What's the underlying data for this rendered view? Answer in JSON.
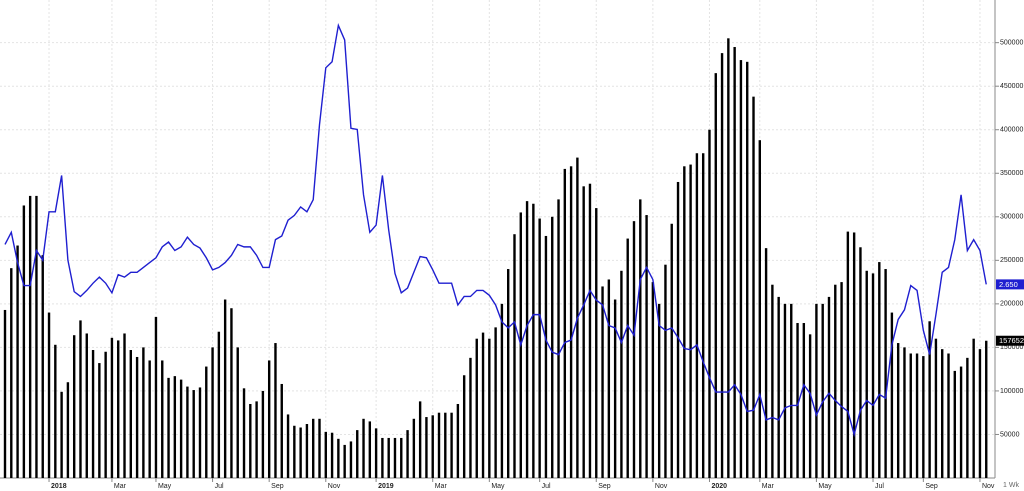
{
  "chart_data": {
    "type": "bar-line",
    "interval_label": "1 Wk",
    "categories": [
      null,
      null,
      null,
      null,
      null,
      null,
      null,
      "2018",
      null,
      null,
      null,
      null,
      null,
      null,
      null,
      null,
      null,
      "Mar",
      null,
      null,
      null,
      null,
      null,
      null,
      "May",
      null,
      null,
      null,
      null,
      null,
      null,
      null,
      null,
      "Jul",
      null,
      null,
      null,
      null,
      null,
      null,
      null,
      null,
      "Sep",
      null,
      null,
      null,
      null,
      null,
      null,
      null,
      null,
      "Nov",
      null,
      null,
      null,
      null,
      null,
      null,
      null,
      "2019",
      null,
      null,
      null,
      null,
      null,
      null,
      null,
      null,
      "Mar",
      null,
      null,
      null,
      null,
      null,
      null,
      null,
      null,
      "May",
      null,
      null,
      null,
      null,
      null,
      null,
      null,
      "Jul",
      null,
      null,
      null,
      null,
      null,
      null,
      null,
      null,
      "Sep",
      null,
      null,
      null,
      null,
      null,
      null,
      null,
      null,
      "Nov",
      null,
      null,
      null,
      null,
      null,
      null,
      null,
      null,
      "2020",
      null,
      null,
      null,
      null,
      null,
      null,
      null,
      "Mar",
      null,
      null,
      null,
      null,
      null,
      null,
      null,
      null,
      "May",
      null,
      null,
      null,
      null,
      null,
      null,
      null,
      null,
      "Jul",
      null,
      null,
      null,
      null,
      null,
      null,
      null,
      "Sep",
      null,
      null,
      null,
      null,
      null,
      null,
      null,
      null,
      "Nov",
      null
    ],
    "ylim": [
      0,
      549000
    ],
    "yticks": [
      50000,
      100000,
      150000,
      200000,
      250000,
      300000,
      350000,
      400000,
      450000,
      500000
    ],
    "y2lim": [
      1.05,
      5.0
    ],
    "grid": true,
    "series": [
      {
        "color": "#000000",
        "last_value_label": "157652",
        "values": [
          193000,
          241000,
          267000,
          313000,
          324000,
          324000,
          256000,
          190000,
          153000,
          99000,
          110000,
          164000,
          181000,
          166000,
          147000,
          132000,
          145000,
          161000,
          158000,
          166000,
          147000,
          139000,
          150000,
          135000,
          185000,
          135000,
          115000,
          117000,
          113000,
          105000,
          101000,
          104000,
          128000,
          150000,
          168000,
          205000,
          195000,
          150000,
          103000,
          85000,
          88000,
          100000,
          135000,
          155000,
          108000,
          73000,
          60000,
          58000,
          62000,
          68000,
          68000,
          53000,
          52000,
          45000,
          38000,
          42000,
          55000,
          68000,
          65000,
          57000,
          46000,
          46000,
          46000,
          46000,
          55000,
          68000,
          88000,
          70000,
          72000,
          75000,
          75000,
          75000,
          85000,
          118000,
          138000,
          160000,
          167000,
          160000,
          173000,
          200000,
          240000,
          280000,
          305000,
          318000,
          315000,
          298000,
          278000,
          300000,
          320000,
          355000,
          358000,
          368000,
          335000,
          338000,
          310000,
          220000,
          228000,
          205000,
          238000,
          275000,
          295000,
          320000,
          302000,
          225000,
          200000,
          245000,
          292000,
          340000,
          358000,
          360000,
          373000,
          373000,
          400000,
          465000,
          488000,
          505000,
          495000,
          480000,
          478000,
          438000,
          388000,
          264000,
          222000,
          208000,
          200000,
          200000,
          178000,
          178000,
          165000,
          200000,
          200000,
          208000,
          222000,
          225000,
          283000,
          282000,
          265000,
          238000,
          235000,
          248000,
          240000,
          190000,
          155000,
          150000,
          143000,
          143000,
          140000,
          180000,
          160000,
          148000,
          143000,
          123000,
          128000,
          138000,
          160000,
          148000,
          157652
        ]
      },
      {
        "color": "#1f1fd0",
        "axis": "y2",
        "last_value_label": "2.650",
        "values": [
          2.98,
          3.08,
          2.83,
          2.64,
          2.64,
          2.93,
          2.85,
          3.25,
          3.25,
          3.55,
          2.85,
          2.59,
          2.55,
          2.6,
          2.66,
          2.71,
          2.66,
          2.58,
          2.73,
          2.71,
          2.75,
          2.75,
          2.79,
          2.83,
          2.87,
          2.96,
          3.0,
          2.93,
          2.96,
          3.04,
          2.98,
          2.95,
          2.87,
          2.77,
          2.79,
          2.83,
          2.89,
          2.98,
          2.96,
          2.96,
          2.89,
          2.79,
          2.79,
          3.02,
          3.05,
          3.18,
          3.22,
          3.29,
          3.25,
          3.35,
          3.97,
          4.44,
          4.49,
          4.79,
          4.67,
          3.94,
          3.93,
          3.39,
          3.08,
          3.14,
          3.55,
          3.1,
          2.74,
          2.58,
          2.62,
          2.75,
          2.88,
          2.87,
          2.77,
          2.66,
          2.66,
          2.66,
          2.48,
          2.55,
          2.55,
          2.6,
          2.6,
          2.56,
          2.48,
          2.34,
          2.29,
          2.34,
          2.15,
          2.31,
          2.4,
          2.4,
          2.19,
          2.09,
          2.07,
          2.17,
          2.19,
          2.37,
          2.48,
          2.6,
          2.52,
          2.48,
          2.31,
          2.29,
          2.17,
          2.31,
          2.23,
          2.69,
          2.79,
          2.69,
          2.31,
          2.27,
          2.29,
          2.21,
          2.12,
          2.11,
          2.15,
          2.01,
          1.88,
          1.76,
          1.76,
          1.76,
          1.82,
          1.74,
          1.6,
          1.61,
          1.74,
          1.53,
          1.55,
          1.53,
          1.63,
          1.65,
          1.65,
          1.82,
          1.75,
          1.57,
          1.68,
          1.75,
          1.69,
          1.64,
          1.6,
          1.41,
          1.61,
          1.69,
          1.65,
          1.74,
          1.71,
          2.15,
          2.36,
          2.44,
          2.64,
          2.6,
          2.27,
          2.07,
          2.4,
          2.75,
          2.79,
          3.02,
          3.39,
          2.93,
          3.02,
          2.93,
          2.65
        ]
      }
    ]
  }
}
